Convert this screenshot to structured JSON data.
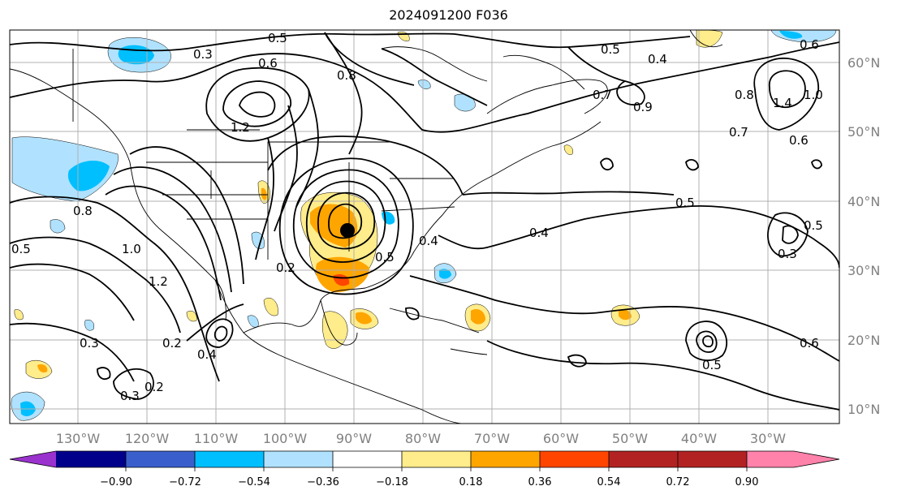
{
  "title": "2024091200 F036",
  "map": {
    "lon_labels": [
      "130°W",
      "120°W",
      "110°W",
      "100°W",
      "90°W",
      "80°W",
      "70°W",
      "60°W",
      "50°W",
      "40°W",
      "30°W"
    ],
    "lat_labels": [
      "60°N",
      "50°N",
      "40°N",
      "30°N",
      "20°N",
      "10°N"
    ],
    "contour_labels": [
      "0.5",
      "0.6",
      "0.3",
      "0.8",
      "1.2",
      "0.7",
      "0.9",
      "0.5",
      "0.4",
      "0.7",
      "0.6",
      "0.8",
      "1.4",
      "1.0",
      "0.6",
      "0.5",
      "0.4",
      "0.4",
      "0.5",
      "0.3",
      "0.8",
      "1.0",
      "1.2",
      "0.5",
      "0.3",
      "0.2",
      "0.4",
      "0.3",
      "0.2",
      "0.5",
      "0.6",
      "0.2",
      "0.5"
    ],
    "marker": "low-center"
  },
  "colorbar": {
    "ticks": [
      "−0.90",
      "−0.72",
      "−0.54",
      "−0.36",
      "−0.18",
      "0.18",
      "0.36",
      "0.54",
      "0.72",
      "0.90"
    ],
    "colors": [
      "#9a32cd",
      "#00008b",
      "#3a5fcd",
      "#00bfff",
      "#b0e2ff",
      "#ffffff",
      "#ffec8b",
      "#ffa500",
      "#ff4500",
      "#b22222",
      "#ff82ab"
    ]
  }
}
